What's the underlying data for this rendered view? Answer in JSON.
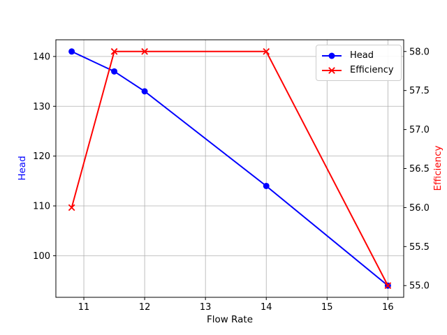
{
  "chart_data": {
    "type": "line",
    "title": "",
    "xlabel": "Flow Rate",
    "ylabel_left": "Head",
    "ylabel_right": "Efficiency",
    "x": [
      10.8,
      11.5,
      12,
      14,
      16
    ],
    "series": [
      {
        "name": "Head",
        "axis": "left",
        "color": "#0000ff",
        "marker": "circle",
        "values": [
          141,
          137,
          133,
          114,
          94
        ]
      },
      {
        "name": "Efficiency",
        "axis": "right",
        "color": "#ff0000",
        "marker": "x",
        "values": [
          56,
          58,
          58,
          58,
          55
        ]
      }
    ],
    "xlim": [
      10.54,
      16.26
    ],
    "ylim_left": [
      91.65,
      143.35
    ],
    "ylim_right": [
      54.85,
      58.15
    ],
    "x_tick_labels": [
      "11",
      "12",
      "13",
      "14",
      "15",
      "16"
    ],
    "y_left_tick_labels": [
      "100",
      "110",
      "120",
      "130",
      "140"
    ],
    "y_right_tick_labels": [
      "55.0",
      "55.5",
      "56.0",
      "56.5",
      "57.0",
      "57.5",
      "58.0"
    ],
    "grid": true,
    "legend_position": "upper right",
    "colors": {
      "background": "#ffffff",
      "grid": "#b0b0b0",
      "spine": "#000000",
      "tick_label": "#000000",
      "head_series": "#0000ff",
      "efficiency_series": "#ff0000"
    }
  }
}
